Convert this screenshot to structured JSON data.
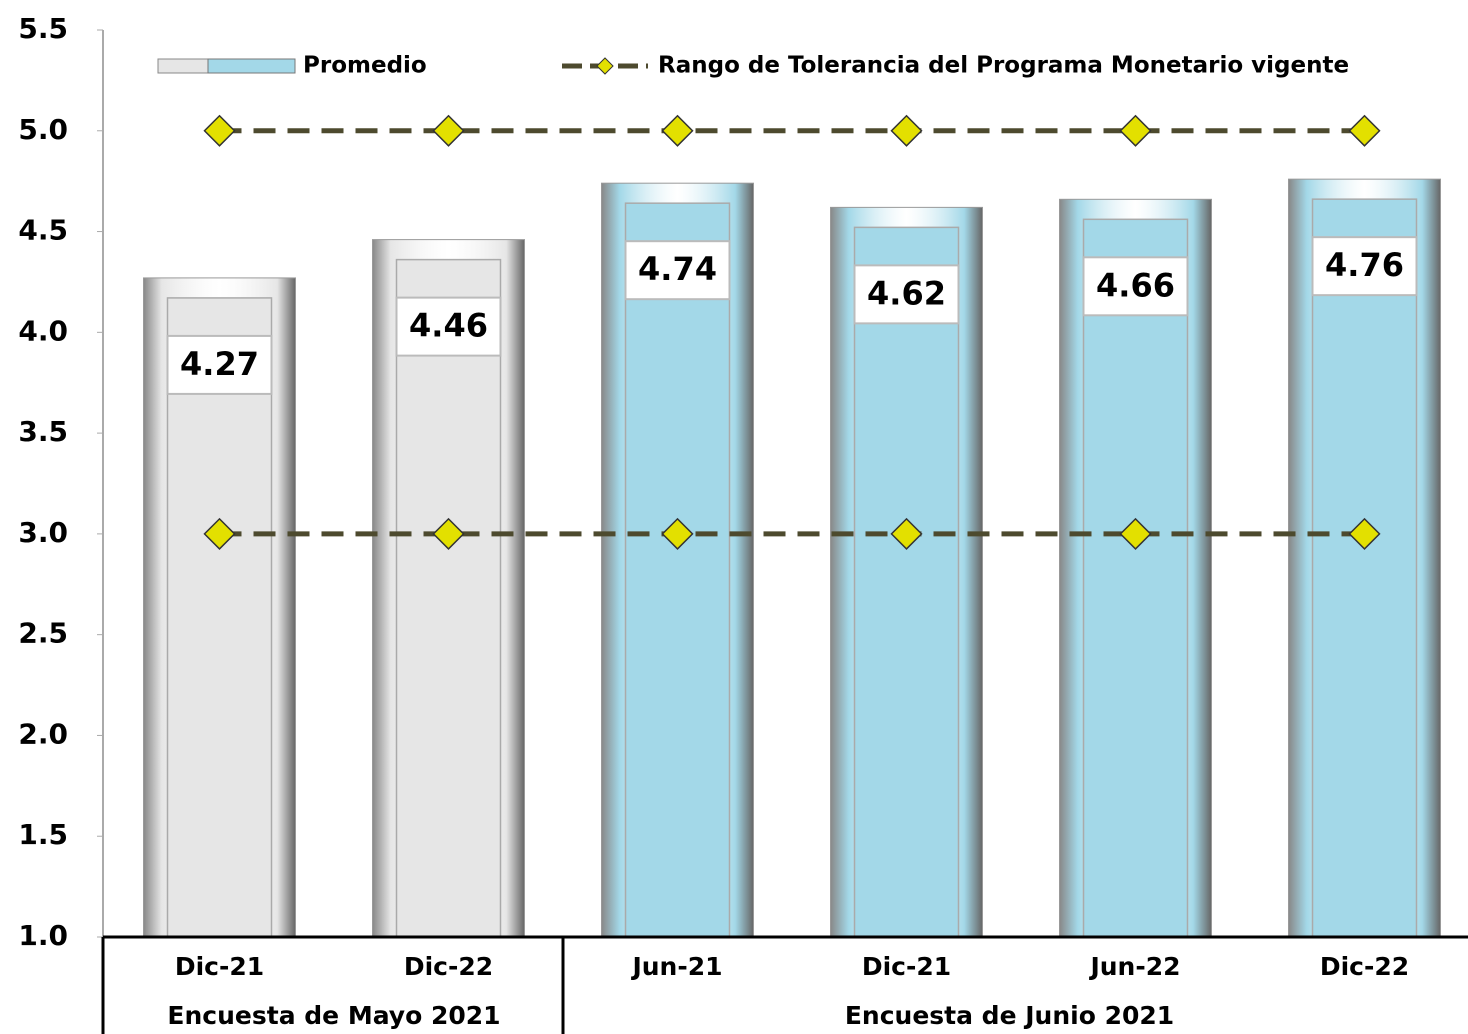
{
  "chart_data": {
    "type": "bar",
    "categories": [
      "Dic-21",
      "Dic-22",
      "Jun-21",
      "Dic-21",
      "Jun-22",
      "Dic-22"
    ],
    "groups": [
      {
        "name": "Encuesta de Mayo 2021",
        "size": 2
      },
      {
        "name": "Encuesta de Junio 2021",
        "size": 4
      }
    ],
    "series": [
      {
        "name": "Promedio",
        "type": "bar",
        "colors": [
          "#e6e6e6",
          "#e6e6e6",
          "#a3d8e8",
          "#a3d8e8",
          "#a3d8e8",
          "#a3d8e8"
        ],
        "values": [
          4.27,
          4.46,
          4.74,
          4.62,
          4.66,
          4.76
        ]
      },
      {
        "name": "Rango de Tolerancia del Programa Monetario vigente",
        "type": "line",
        "color": "#4d4a2e",
        "marker_color": "#e3e000",
        "upper": [
          5,
          5,
          5,
          5,
          5,
          5
        ],
        "lower": [
          3,
          3,
          3,
          3,
          3,
          3
        ]
      }
    ],
    "ylim": [
      1,
      5.5
    ],
    "yticks": [
      {
        "value": 1,
        "label": "1.0"
      },
      1.5,
      {
        "value": 2,
        "label": "2.0"
      },
      2.5,
      {
        "value": 3,
        "label": "3.0"
      },
      3.5,
      {
        "value": 4,
        "label": "4.0"
      },
      4.5,
      {
        "value": 5,
        "label": "5.0"
      },
      5.5
    ],
    "grid": false
  }
}
